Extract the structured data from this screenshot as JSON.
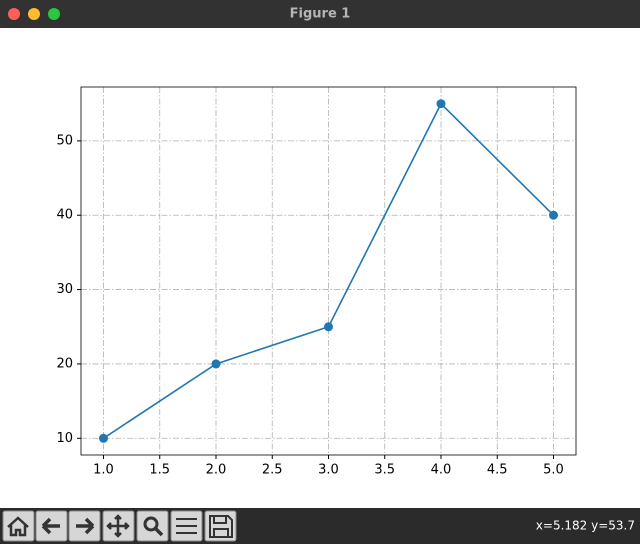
{
  "window": {
    "title": "Figure 1"
  },
  "toolbar": {
    "status": "x=5.182 y=53.7"
  },
  "chart_data": {
    "type": "line",
    "x": [
      1,
      2,
      3,
      4,
      5
    ],
    "series": [
      {
        "color": "#1f77b4",
        "marker": "o",
        "values": [
          10,
          20,
          25,
          55,
          40
        ]
      }
    ],
    "xlim": [
      0.8,
      5.2
    ],
    "xticks": [
      {
        "value": 1,
        "label": "1.0"
      },
      {
        "value": 1.5,
        "label": "1.5"
      },
      {
        "value": 2,
        "label": "2.0"
      },
      {
        "value": 2.5,
        "label": "2.5"
      },
      {
        "value": 3,
        "label": "3.0"
      },
      {
        "value": 3.5,
        "label": "3.5"
      },
      {
        "value": 4,
        "label": "4.0"
      },
      {
        "value": 4.5,
        "label": "4.5"
      },
      {
        "value": 5,
        "label": "5.0"
      }
    ],
    "ylim": [
      7.75,
      57.25
    ],
    "yticks": [
      10,
      20,
      30,
      40,
      50
    ],
    "grid": true,
    "grid_style": "dashdot",
    "grid_color": "#b0b0b0"
  }
}
